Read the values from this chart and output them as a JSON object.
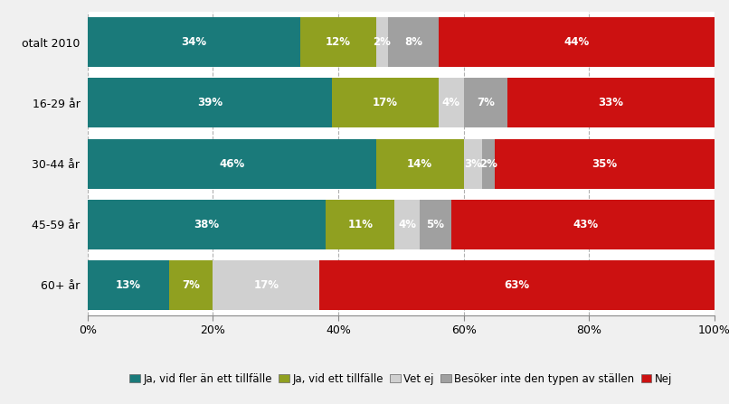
{
  "categories": [
    "otalt 2010",
    "16-29 år",
    "30-44 år",
    "45-59 år",
    "60+ år"
  ],
  "series": {
    "Ja, vid fler än ett tillfälle": [
      34,
      39,
      46,
      38,
      13
    ],
    "Ja, vid ett tillfälle": [
      12,
      17,
      14,
      11,
      7
    ],
    "Vet ej": [
      2,
      4,
      3,
      4,
      17
    ],
    "Besöker inte den typen av ställen": [
      8,
      7,
      2,
      5,
      0
    ],
    "Nej": [
      44,
      33,
      35,
      43,
      63
    ]
  },
  "colors": {
    "Ja, vid fler än ett tillfälle": "#1a7a7a",
    "Ja, vid ett tillfälle": "#90a020",
    "Vet ej": "#d0d0d0",
    "Besöker inte den typen av ställen": "#a0a0a0",
    "Nej": "#cc1111"
  },
  "text_color": "#ffffff",
  "bar_height": 0.82,
  "xlim": [
    0,
    100
  ],
  "xticks": [
    0,
    20,
    40,
    60,
    80,
    100
  ],
  "xticklabels": [
    "0%",
    "20%",
    "40%",
    "60%",
    "80%",
    "100%"
  ],
  "background_color": "#f0f0f0",
  "plot_bg_color": "#ffffff",
  "grid_color": "#b0b0b0",
  "label_fontsize": 8.5,
  "legend_fontsize": 8.5,
  "ytick_fontsize": 9,
  "xtick_fontsize": 9
}
